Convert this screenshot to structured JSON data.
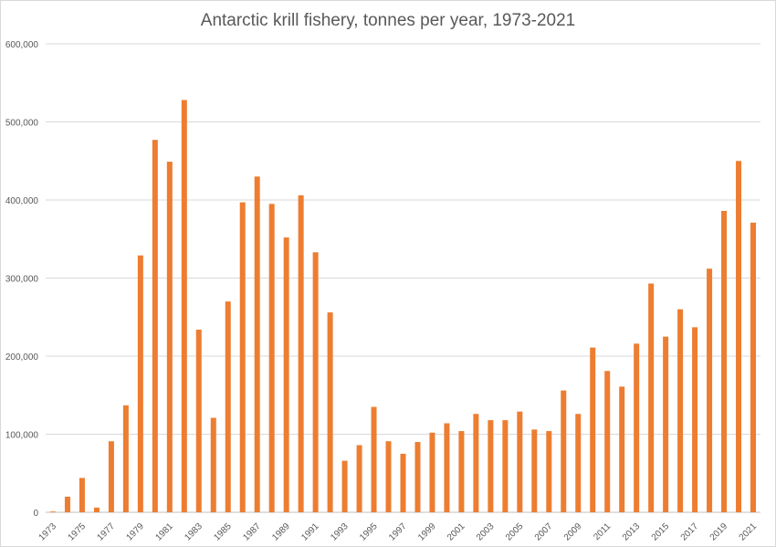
{
  "chart_data": {
    "type": "bar",
    "title": "Antarctic krill fishery, tonnes per year, 1973-2021",
    "xlabel": "",
    "ylabel": "",
    "ylim": [
      0,
      600000
    ],
    "yticks": [
      0,
      100000,
      200000,
      300000,
      400000,
      500000,
      600000
    ],
    "ytick_labels": [
      "0",
      "100,000",
      "200,000",
      "300,000",
      "400,000",
      "500,000",
      "600,000"
    ],
    "categories": [
      "1973",
      "1974",
      "1975",
      "1976",
      "1977",
      "1978",
      "1979",
      "1980",
      "1981",
      "1982",
      "1983",
      "1984",
      "1985",
      "1986",
      "1987",
      "1988",
      "1989",
      "1990",
      "1991",
      "1992",
      "1993",
      "1994",
      "1995",
      "1996",
      "1997",
      "1998",
      "1999",
      "2000",
      "2001",
      "2002",
      "2003",
      "2004",
      "2005",
      "2006",
      "2007",
      "2008",
      "2009",
      "2010",
      "2011",
      "2012",
      "2013",
      "2014",
      "2015",
      "2016",
      "2017",
      "2018",
      "2019",
      "2020",
      "2021"
    ],
    "xtick_labels": [
      "1973",
      "1975",
      "1977",
      "1979",
      "1981",
      "1983",
      "1985",
      "1987",
      "1989",
      "1991",
      "1993",
      "1995",
      "1997",
      "1999",
      "2001",
      "2003",
      "2005",
      "2007",
      "2009",
      "2011",
      "2013",
      "2015",
      "2017",
      "2019",
      "2021"
    ],
    "values": [
      1000,
      20000,
      44000,
      6000,
      91000,
      137000,
      329000,
      477000,
      449000,
      528000,
      234000,
      121000,
      270000,
      397000,
      430000,
      395000,
      352000,
      406000,
      333000,
      256000,
      66000,
      86000,
      135000,
      91000,
      75000,
      90000,
      102000,
      114000,
      104000,
      126000,
      118000,
      118000,
      129000,
      106000,
      104000,
      156000,
      126000,
      211000,
      181000,
      161000,
      216000,
      293000,
      225000,
      260000,
      237000,
      312000,
      386000,
      450000,
      371000
    ],
    "grid": true,
    "legend": "none",
    "colors": {
      "bar": "#ed7d31",
      "grid": "#d9d9d9",
      "text": "#595959"
    }
  }
}
